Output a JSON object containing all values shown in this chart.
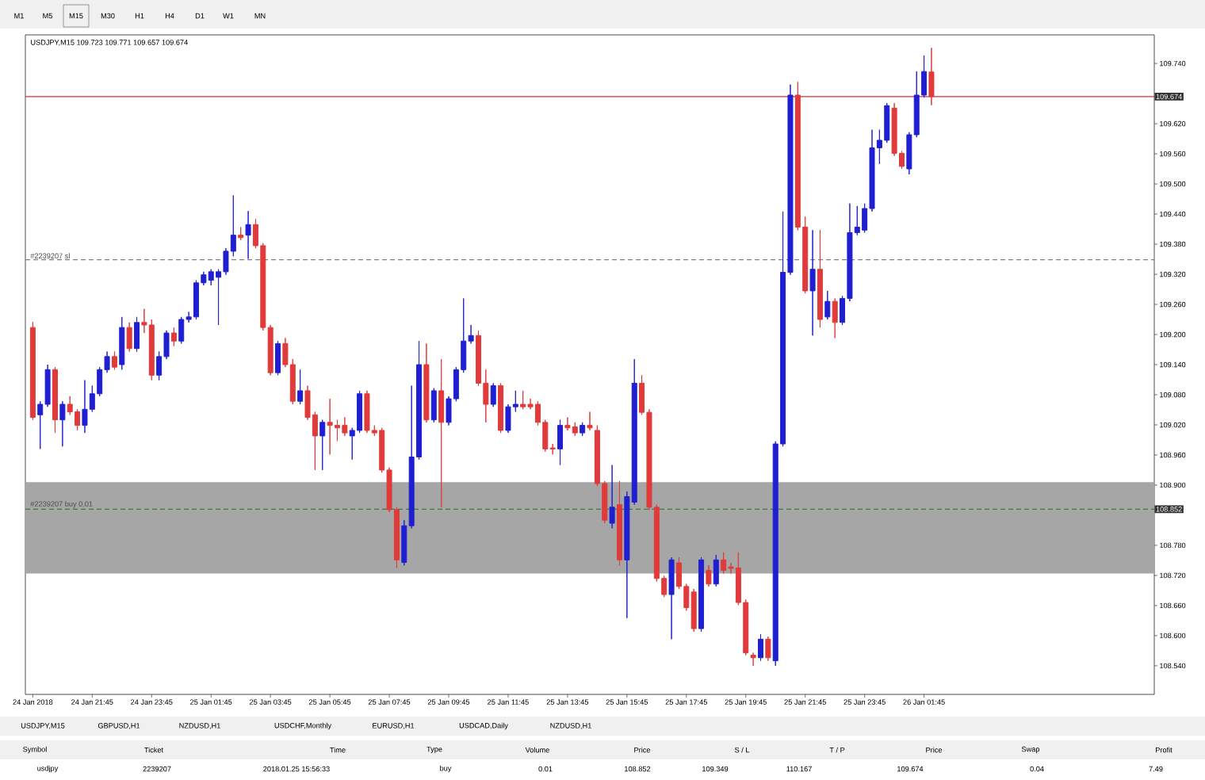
{
  "chart_data": {
    "type": "candlestick",
    "colors": [
      "#e03a3a",
      "#1f1fd1",
      "#1f1fd1",
      "#e03a3a",
      "#1f1fd1",
      "#e03a3a",
      "#e03a3a",
      "#1f1fd1",
      "#1f1fd1",
      "#1f1fd1",
      "#1f1fd1",
      "#e03a3a",
      "#1f1fd1",
      "#e03a3a",
      "#1f1fd1",
      "#e03a3a",
      "#e03a3a",
      "#1f1fd1",
      "#1f1fd1",
      "#e03a3a",
      "#1f1fd1",
      "#1f1fd1",
      "#1f1fd1",
      "#1f1fd1",
      "#1f1fd1",
      "#1f1fd1",
      "#1f1fd1",
      "#1f1fd1",
      "#e03a3a",
      "#1f1fd1",
      "#e03a3a",
      "#e03a3a",
      "#e03a3a",
      "#1f1fd1",
      "#e03a3a",
      "#e03a3a",
      "#1f1fd1",
      "#e03a3a",
      "#e03a3a",
      "#1f1fd1",
      "#e03a3a",
      "#e03a3a",
      "#e03a3a",
      "#1f1fd1",
      "#1f1fd1",
      "#e03a3a",
      "#e03a3a",
      "#e03a3a",
      "#e03a3a",
      "#e03a3a",
      "#1f1fd1",
      "#1f1fd1",
      "#1f1fd1",
      "#e03a3a",
      "#1f1fd1",
      "#e03a3a",
      "#1f1fd1",
      "#1f1fd1",
      "#1f1fd1",
      "#1f1fd1",
      "#e03a3a",
      "#e03a3a",
      "#1f1fd1",
      "#e03a3a",
      "#1f1fd1",
      "#1f1fd1",
      "#e03a3a",
      "#e03a3a",
      "#e03a3a",
      "#e03a3a",
      "#e03a3a",
      "#1f1fd1",
      "#e03a3a",
      "#e03a3a",
      "#1f1fd1",
      "#e03a3a",
      "#e03a3a",
      "#e03a3a",
      "#1f1fd1",
      "#e03a3a",
      "#1f1fd1",
      "#1f1fd1",
      "#e03a3a",
      "#e03a3a",
      "#e03a3a",
      "#e03a3a",
      "#1f1fd1",
      "#e03a3a",
      "#e03a3a",
      "#e03a3a",
      "#1f1fd1",
      "#e03a3a",
      "#1f1fd1",
      "#e03a3a",
      "#e03a3a",
      "#e03a3a",
      "#e03a3a",
      "#e03a3a",
      "#1f1fd1",
      "#e03a3a",
      "#1f1fd1",
      "#1f1fd1",
      "#1f1fd1",
      "#e03a3a",
      "#e03a3a",
      "#1f1fd1",
      "#e03a3a",
      "#1f1fd1",
      "#e03a3a",
      "#1f1fd1",
      "#1f1fd1",
      "#1f1fd1",
      "#1f1fd1",
      "#1f1fd1",
      "#1f1fd1",
      "#1f1fd1",
      "#e03a3a",
      "#e03a3a",
      "#1f1fd1",
      "#1f1fd1",
      "#1f1fd1",
      "#e03a3a"
    ],
    "x": [
      "2018-01-24T19:45",
      "2018-01-24T20:00",
      "2018-01-24T20:15",
      "2018-01-24T20:30",
      "2018-01-24T20:45",
      "2018-01-24T21:00",
      "2018-01-24T21:15",
      "2018-01-24T21:30",
      "2018-01-24T21:45",
      "2018-01-24T22:00",
      "2018-01-24T22:15",
      "2018-01-24T22:30",
      "2018-01-24T22:45",
      "2018-01-24T23:00",
      "2018-01-24T23:15",
      "2018-01-24T23:30",
      "2018-01-24T23:45",
      "2018-01-25T00:00",
      "2018-01-25T00:15",
      "2018-01-25T00:30",
      "2018-01-25T00:45",
      "2018-01-25T01:00",
      "2018-01-25T01:15",
      "2018-01-25T01:30",
      "2018-01-25T01:45",
      "2018-01-25T02:00",
      "2018-01-25T02:15",
      "2018-01-25T02:30",
      "2018-01-25T02:45",
      "2018-01-25T03:00",
      "2018-01-25T03:15",
      "2018-01-25T03:30",
      "2018-01-25T03:45",
      "2018-01-25T04:00",
      "2018-01-25T04:15",
      "2018-01-25T04:30",
      "2018-01-25T04:45",
      "2018-01-25T05:00",
      "2018-01-25T05:15",
      "2018-01-25T05:30",
      "2018-01-25T05:45",
      "2018-01-25T06:00",
      "2018-01-25T06:15",
      "2018-01-25T06:30",
      "2018-01-25T06:45",
      "2018-01-25T07:00",
      "2018-01-25T07:15",
      "2018-01-25T07:30",
      "2018-01-25T07:45",
      "2018-01-25T08:00",
      "2018-01-25T08:15",
      "2018-01-25T08:30",
      "2018-01-25T08:45",
      "2018-01-25T09:00",
      "2018-01-25T09:15",
      "2018-01-25T09:30",
      "2018-01-25T09:45",
      "2018-01-25T10:00",
      "2018-01-25T10:15",
      "2018-01-25T10:30",
      "2018-01-25T10:45",
      "2018-01-25T11:00",
      "2018-01-25T11:15",
      "2018-01-25T11:30",
      "2018-01-25T11:45",
      "2018-01-25T12:00",
      "2018-01-25T12:15",
      "2018-01-25T12:30",
      "2018-01-25T12:45",
      "2018-01-25T13:00",
      "2018-01-25T13:15",
      "2018-01-25T13:30",
      "2018-01-25T13:45",
      "2018-01-25T14:00",
      "2018-01-25T14:15",
      "2018-01-25T14:30",
      "2018-01-25T14:45",
      "2018-01-25T15:00",
      "2018-01-25T15:15",
      "2018-01-25T15:30",
      "2018-01-25T15:45",
      "2018-01-25T16:00",
      "2018-01-25T16:15",
      "2018-01-25T16:30",
      "2018-01-25T16:45",
      "2018-01-25T17:00",
      "2018-01-25T17:15",
      "2018-01-25T17:30",
      "2018-01-25T17:45",
      "2018-01-25T18:00",
      "2018-01-25T18:15",
      "2018-01-25T18:30",
      "2018-01-25T18:45",
      "2018-01-25T19:00",
      "2018-01-25T19:15",
      "2018-01-25T19:30",
      "2018-01-25T19:45",
      "2018-01-25T20:00",
      "2018-01-25T20:15",
      "2018-01-25T20:30",
      "2018-01-25T20:45",
      "2018-01-25T21:00",
      "2018-01-25T21:15",
      "2018-01-25T21:30",
      "2018-01-25T21:45",
      "2018-01-25T22:00",
      "2018-01-25T22:15",
      "2018-01-25T22:30",
      "2018-01-25T22:45",
      "2018-01-25T23:00",
      "2018-01-25T23:15",
      "2018-01-25T23:30",
      "2018-01-25T23:45",
      "2018-01-26T00:00",
      "2018-01-26T00:15",
      "2018-01-26T00:30",
      "2018-01-26T00:45",
      "2018-01-26T01:00",
      "2018-01-26T01:15",
      "2018-01-26T01:30",
      "2018-01-26T01:45",
      "2018-01-26T02:00"
    ],
    "ohlc": [
      [
        109.214,
        109.225,
        109.03,
        109.035
      ],
      [
        109.04,
        109.067,
        108.972,
        109.061
      ],
      [
        109.061,
        109.14,
        109.056,
        109.13
      ],
      [
        109.13,
        109.135,
        109.004,
        109.03
      ],
      [
        109.03,
        109.067,
        108.977,
        109.061
      ],
      [
        109.061,
        109.077,
        109.04,
        109.046
      ],
      [
        109.046,
        109.051,
        109.009,
        109.019
      ],
      [
        109.019,
        109.109,
        109.004,
        109.051
      ],
      [
        109.051,
        109.098,
        109.046,
        109.082
      ],
      [
        109.082,
        109.135,
        109.077,
        109.13
      ],
      [
        109.13,
        109.166,
        109.124,
        109.156
      ],
      [
        109.156,
        109.166,
        109.13,
        109.135
      ],
      [
        109.14,
        109.235,
        109.13,
        109.214
      ],
      [
        109.214,
        109.224,
        109.166,
        109.172
      ],
      [
        109.172,
        109.235,
        109.166,
        109.224
      ],
      [
        109.224,
        109.251,
        109.203,
        109.219
      ],
      [
        109.219,
        109.23,
        109.109,
        109.119
      ],
      [
        109.119,
        109.166,
        109.109,
        109.156
      ],
      [
        109.156,
        109.208,
        109.151,
        109.203
      ],
      [
        109.203,
        109.214,
        109.177,
        109.187
      ],
      [
        109.187,
        109.235,
        109.182,
        109.23
      ],
      [
        109.23,
        109.245,
        109.224,
        109.235
      ],
      [
        109.235,
        109.308,
        109.23,
        109.303
      ],
      [
        109.303,
        109.325,
        109.298,
        109.319
      ],
      [
        109.308,
        109.33,
        109.298,
        109.325
      ],
      [
        109.314,
        109.33,
        109.219,
        109.325
      ],
      [
        109.325,
        109.372,
        109.319,
        109.366
      ],
      [
        109.366,
        109.477,
        109.356,
        109.398
      ],
      [
        109.398,
        109.414,
        109.388,
        109.393
      ],
      [
        109.398,
        109.446,
        109.351,
        109.419
      ],
      [
        109.419,
        109.43,
        109.372,
        109.377
      ],
      [
        109.377,
        109.382,
        109.208,
        109.214
      ],
      [
        109.214,
        109.219,
        109.119,
        109.124
      ],
      [
        109.124,
        109.187,
        109.119,
        109.182
      ],
      [
        109.182,
        109.193,
        109.135,
        109.14
      ],
      [
        109.14,
        109.151,
        109.061,
        109.067
      ],
      [
        109.067,
        109.13,
        109.061,
        109.088
      ],
      [
        109.088,
        109.098,
        109.03,
        109.035
      ],
      [
        109.04,
        109.046,
        108.93,
        108.998
      ],
      [
        108.998,
        109.03,
        108.93,
        109.025
      ],
      [
        109.025,
        109.072,
        108.961,
        109.019
      ],
      [
        109.019,
        109.03,
        108.988,
        109.014
      ],
      [
        109.019,
        109.035,
        108.998,
        109.004
      ],
      [
        108.998,
        109.014,
        108.951,
        109.009
      ],
      [
        109.009,
        109.088,
        109.004,
        109.082
      ],
      [
        109.082,
        109.088,
        109.004,
        109.009
      ],
      [
        109.009,
        109.019,
        108.998,
        109.004
      ],
      [
        109.009,
        109.014,
        108.925,
        108.93
      ],
      [
        108.93,
        108.935,
        108.846,
        108.851
      ],
      [
        108.851,
        108.856,
        108.735,
        108.751
      ],
      [
        108.746,
        108.83,
        108.74,
        108.819
      ],
      [
        108.819,
        109.098,
        108.814,
        108.956
      ],
      [
        108.956,
        109.187,
        108.951,
        109.14
      ],
      [
        109.14,
        109.182,
        109.025,
        109.03
      ],
      [
        109.03,
        109.093,
        109.025,
        109.088
      ],
      [
        109.088,
        109.151,
        108.856,
        109.025
      ],
      [
        109.025,
        109.077,
        109.019,
        109.072
      ],
      [
        109.072,
        109.135,
        109.067,
        109.13
      ],
      [
        109.13,
        109.272,
        109.124,
        109.187
      ],
      [
        109.187,
        109.219,
        109.182,
        109.198
      ],
      [
        109.198,
        109.208,
        109.098,
        109.103
      ],
      [
        109.103,
        109.13,
        109.025,
        109.061
      ],
      [
        109.061,
        109.103,
        109.056,
        109.098
      ],
      [
        109.098,
        109.103,
        109.004,
        109.009
      ],
      [
        109.009,
        109.061,
        109.004,
        109.056
      ],
      [
        109.056,
        109.088,
        109.046,
        109.061
      ],
      [
        109.061,
        109.088,
        109.051,
        109.056
      ],
      [
        109.061,
        109.072,
        109.051,
        109.056
      ],
      [
        109.061,
        109.067,
        109.019,
        109.025
      ],
      [
        109.025,
        109.03,
        108.967,
        108.972
      ],
      [
        108.974,
        108.982,
        108.961,
        108.972
      ],
      [
        108.972,
        109.03,
        108.94,
        109.019
      ],
      [
        109.019,
        109.035,
        109.009,
        109.014
      ],
      [
        109.016,
        109.025,
        108.998,
        109.004
      ],
      [
        109.004,
        109.025,
        108.998,
        109.019
      ],
      [
        109.019,
        109.046,
        109.009,
        109.014
      ],
      [
        109.009,
        109.019,
        108.898,
        108.903
      ],
      [
        108.903,
        108.908,
        108.824,
        108.83
      ],
      [
        108.824,
        108.94,
        108.814,
        108.856
      ],
      [
        108.861,
        108.908,
        108.74,
        108.751
      ],
      [
        108.751,
        108.887,
        108.635,
        108.877
      ],
      [
        108.866,
        109.151,
        108.861,
        109.103
      ],
      [
        109.103,
        109.119,
        109.04,
        109.045
      ],
      [
        109.045,
        109.051,
        108.851,
        108.856
      ],
      [
        108.856,
        108.861,
        108.708,
        108.714
      ],
      [
        108.714,
        108.719,
        108.677,
        108.682
      ],
      [
        108.682,
        108.756,
        108.593,
        108.751
      ],
      [
        108.745,
        108.756,
        108.693,
        108.698
      ],
      [
        108.698,
        108.703,
        108.65,
        108.656
      ],
      [
        108.687,
        108.693,
        108.608,
        108.614
      ],
      [
        108.614,
        108.756,
        108.608,
        108.751
      ],
      [
        108.73,
        108.74,
        108.698,
        108.703
      ],
      [
        108.703,
        108.761,
        108.698,
        108.751
      ],
      [
        108.751,
        108.766,
        108.724,
        108.73
      ],
      [
        108.737,
        108.745,
        108.724,
        108.734
      ],
      [
        108.735,
        108.766,
        108.661,
        108.666
      ],
      [
        108.666,
        108.672,
        108.561,
        108.566
      ],
      [
        108.561,
        108.566,
        108.54,
        108.556
      ],
      [
        108.556,
        108.603,
        108.55,
        108.593
      ],
      [
        108.593,
        108.598,
        108.55,
        108.556
      ],
      [
        108.55,
        108.987,
        108.54,
        108.982
      ],
      [
        108.982,
        109.445,
        108.977,
        109.324
      ],
      [
        109.324,
        109.698,
        109.319,
        109.677
      ],
      [
        109.677,
        109.703,
        109.408,
        109.414
      ],
      [
        109.414,
        109.435,
        109.282,
        109.287
      ],
      [
        109.287,
        109.408,
        109.198,
        109.33
      ],
      [
        109.33,
        109.408,
        109.214,
        109.23
      ],
      [
        109.235,
        109.287,
        109.23,
        109.266
      ],
      [
        109.266,
        109.272,
        109.193,
        109.224
      ],
      [
        109.224,
        109.277,
        109.219,
        109.272
      ],
      [
        109.272,
        109.461,
        109.266,
        109.403
      ],
      [
        109.403,
        109.456,
        109.398,
        109.414
      ],
      [
        109.408,
        109.461,
        109.403,
        109.451
      ],
      [
        109.451,
        109.608,
        109.445,
        109.572
      ],
      [
        109.572,
        109.608,
        109.54,
        109.587
      ],
      [
        109.587,
        109.661,
        109.582,
        109.656
      ],
      [
        109.651,
        109.661,
        109.556,
        109.561
      ],
      [
        109.561,
        109.566,
        109.53,
        109.535
      ],
      [
        109.53,
        109.603,
        109.519,
        109.598
      ],
      [
        109.598,
        109.724,
        109.593,
        109.677
      ],
      [
        109.677,
        109.756,
        109.672,
        109.724
      ],
      [
        109.723,
        109.771,
        109.657,
        109.674
      ]
    ],
    "xlim": [
      "2018-01-24T19:30",
      "2018-01-26T09:30"
    ],
    "xticks": [
      {
        "value": "2018-01-24T19:45",
        "label": "24 Jan 2018"
      },
      {
        "value": "2018-01-24T21:45",
        "label": "24 Jan 21:45"
      },
      {
        "value": "2018-01-24T23:45",
        "label": "24 Jan 23:45"
      },
      {
        "value": "2018-01-25T01:45",
        "label": "25 Jan 01:45"
      },
      {
        "value": "2018-01-25T03:45",
        "label": "25 Jan 03:45"
      },
      {
        "value": "2018-01-25T05:45",
        "label": "25 Jan 05:45"
      },
      {
        "value": "2018-01-25T07:45",
        "label": "25 Jan 07:45"
      },
      {
        "value": "2018-01-25T09:45",
        "label": "25 Jan 09:45"
      },
      {
        "value": "2018-01-25T11:45",
        "label": "25 Jan 11:45"
      },
      {
        "value": "2018-01-25T13:45",
        "label": "25 Jan 13:45"
      },
      {
        "value": "2018-01-25T15:45",
        "label": "25 Jan 15:45"
      },
      {
        "value": "2018-01-25T17:45",
        "label": "25 Jan 17:45"
      },
      {
        "value": "2018-01-25T19:45",
        "label": "25 Jan 19:45"
      },
      {
        "value": "2018-01-25T21:45",
        "label": "25 Jan 21:45"
      },
      {
        "value": "2018-01-25T23:45",
        "label": "25 Jan 23:45"
      },
      {
        "value": "2018-01-26T01:45",
        "label": "26 Jan 01:45"
      }
    ],
    "ylim": [
      108.483,
      109.797
    ],
    "yticks": [
      {
        "value": 109.74,
        "label": "109.740"
      },
      {
        "value": 109.62,
        "label": "109.620"
      },
      {
        "value": 109.56,
        "label": "109.560"
      },
      {
        "value": 109.5,
        "label": "109.500"
      },
      {
        "value": 109.44,
        "label": "109.440"
      },
      {
        "value": 109.38,
        "label": "109.380"
      },
      {
        "value": 109.32,
        "label": "109.320"
      },
      {
        "value": 109.26,
        "label": "109.260"
      },
      {
        "value": 109.2,
        "label": "109.200"
      },
      {
        "value": 109.14,
        "label": "109.140"
      },
      {
        "value": 109.08,
        "label": "109.080"
      },
      {
        "value": 109.02,
        "label": "109.020"
      },
      {
        "value": 108.96,
        "label": "108.960"
      },
      {
        "value": 108.9,
        "label": "108.900"
      },
      {
        "value": 108.78,
        "label": "108.780"
      },
      {
        "value": 108.72,
        "label": "108.720"
      },
      {
        "value": 108.66,
        "label": "108.660"
      },
      {
        "value": 108.6,
        "label": "108.600"
      },
      {
        "value": 108.54,
        "label": "108.540"
      }
    ],
    "bands": [
      {
        "axis": "y",
        "from": 108.724,
        "to": 108.906,
        "color": "#a6a6a6"
      }
    ],
    "ref_lines": [
      {
        "axis": "y",
        "value": 109.674,
        "color": "#cc3333",
        "line_style": "solid"
      },
      {
        "axis": "y",
        "value": 109.349,
        "label": "#2239207 sl",
        "color": "#808080",
        "line_style": "dashed"
      },
      {
        "axis": "y",
        "value": 108.852,
        "label": "#2239207 buy 0.01",
        "color": "#3a7d3a",
        "line_style": "dashed"
      }
    ],
    "annotations": [
      "USDJPY,M15 109.723 109.771 109.657 109.674",
      "M1",
      "M5",
      "M15",
      "M30",
      "H1",
      "H4",
      "D1",
      "W1",
      "MN",
      "USDJPY,M15",
      "GBPUSD,H1",
      "NZDUSD,H1",
      "USDCHF,Monthly",
      "EURUSD,H1",
      "USDCAD,Daily",
      "NZDUSD,H1",
      "Symbol",
      "Ticket",
      "Time",
      "Type",
      "Volume",
      "Price",
      "S / L",
      "T / P",
      "Price",
      "Swap",
      "Profit",
      "usdjpy",
      "2239207",
      "2018.01.25 15:56:33",
      "buy",
      "0.01",
      "108.852",
      "109.349",
      "110.167",
      "109.674",
      "0.04",
      "7.49",
      "109.674",
      "108.852"
    ]
  }
}
